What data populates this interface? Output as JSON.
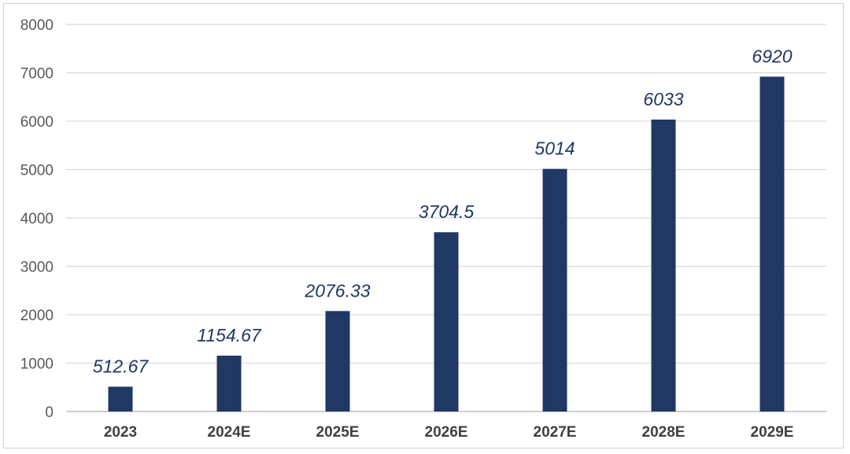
{
  "chart_data": {
    "type": "bar",
    "categories": [
      "2023",
      "2024E",
      "2025E",
      "2026E",
      "2027E",
      "2028E",
      "2029E"
    ],
    "values": [
      512.67,
      1154.67,
      2076.33,
      3704.5,
      5014,
      6033,
      6920
    ],
    "data_labels": [
      "512.67",
      "1154.67",
      "2076.33",
      "3704.5",
      "5014",
      "6033",
      "6920"
    ],
    "yticks": [
      "0",
      "1000",
      "2000",
      "3000",
      "4000",
      "5000",
      "6000",
      "7000",
      "8000"
    ],
    "ylim": [
      0,
      8000
    ],
    "grid": true,
    "legend": "none",
    "bar_color": "#1f3864",
    "label_color": "#1f3864",
    "title": "",
    "xlabel": "",
    "ylabel": ""
  }
}
